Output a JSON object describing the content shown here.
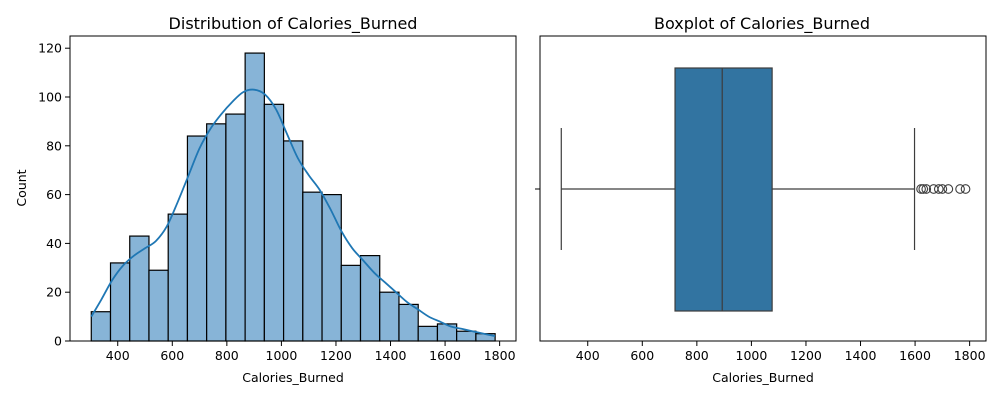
{
  "chart_data": [
    {
      "type": "bar",
      "title": "Distribution of Calories_Burned",
      "xlabel": "Calories_Burned",
      "ylabel": "Count",
      "xlim": [
        225,
        1860
      ],
      "ylim": [
        0,
        125
      ],
      "xticks": [
        400,
        600,
        800,
        1000,
        1200,
        1400,
        1600,
        1800
      ],
      "yticks": [
        0,
        20,
        40,
        60,
        80,
        100,
        120
      ],
      "bin_start": 303,
      "bin_width": 70.5,
      "values": [
        12,
        32,
        43,
        29,
        52,
        84,
        89,
        93,
        118,
        97,
        82,
        61,
        60,
        31,
        35,
        20,
        15,
        6,
        7,
        4,
        3
      ],
      "kde": {
        "x": [
          303,
          340,
          380,
          420,
          460,
          500,
          540,
          580,
          620,
          660,
          700,
          740,
          780,
          820,
          860,
          900,
          940,
          980,
          1020,
          1060,
          1100,
          1140,
          1180,
          1220,
          1260,
          1300,
          1340,
          1380,
          1420,
          1460,
          1500,
          1540,
          1580,
          1620,
          1660,
          1700,
          1740,
          1783
        ],
        "y": [
          10,
          17,
          25,
          31,
          35,
          38,
          41,
          47,
          57,
          68,
          79,
          87,
          93,
          98,
          102,
          103,
          101,
          95,
          85,
          75,
          68,
          62,
          54,
          45,
          38,
          33,
          28,
          24,
          20,
          16,
          13,
          10,
          8,
          6,
          5,
          4,
          3,
          2
        ]
      },
      "colors": {
        "bar": "#87b4d7",
        "kde": "#1f77b4"
      }
    },
    {
      "type": "box",
      "title": "Boxplot of Calories_Burned",
      "xlabel": "Calories_Burned",
      "xlim": [
        225,
        1860
      ],
      "xticks": [
        400,
        600,
        800,
        1000,
        1200,
        1400,
        1600,
        1800
      ],
      "whisker_low": 303,
      "q1": 720,
      "median": 893,
      "q3": 1076,
      "whisker_high": 1598,
      "outliers": [
        1622,
        1630,
        1641,
        1668,
        1687,
        1700,
        1722,
        1765,
        1785
      ],
      "colors": {
        "box": "#3274a1"
      }
    }
  ]
}
